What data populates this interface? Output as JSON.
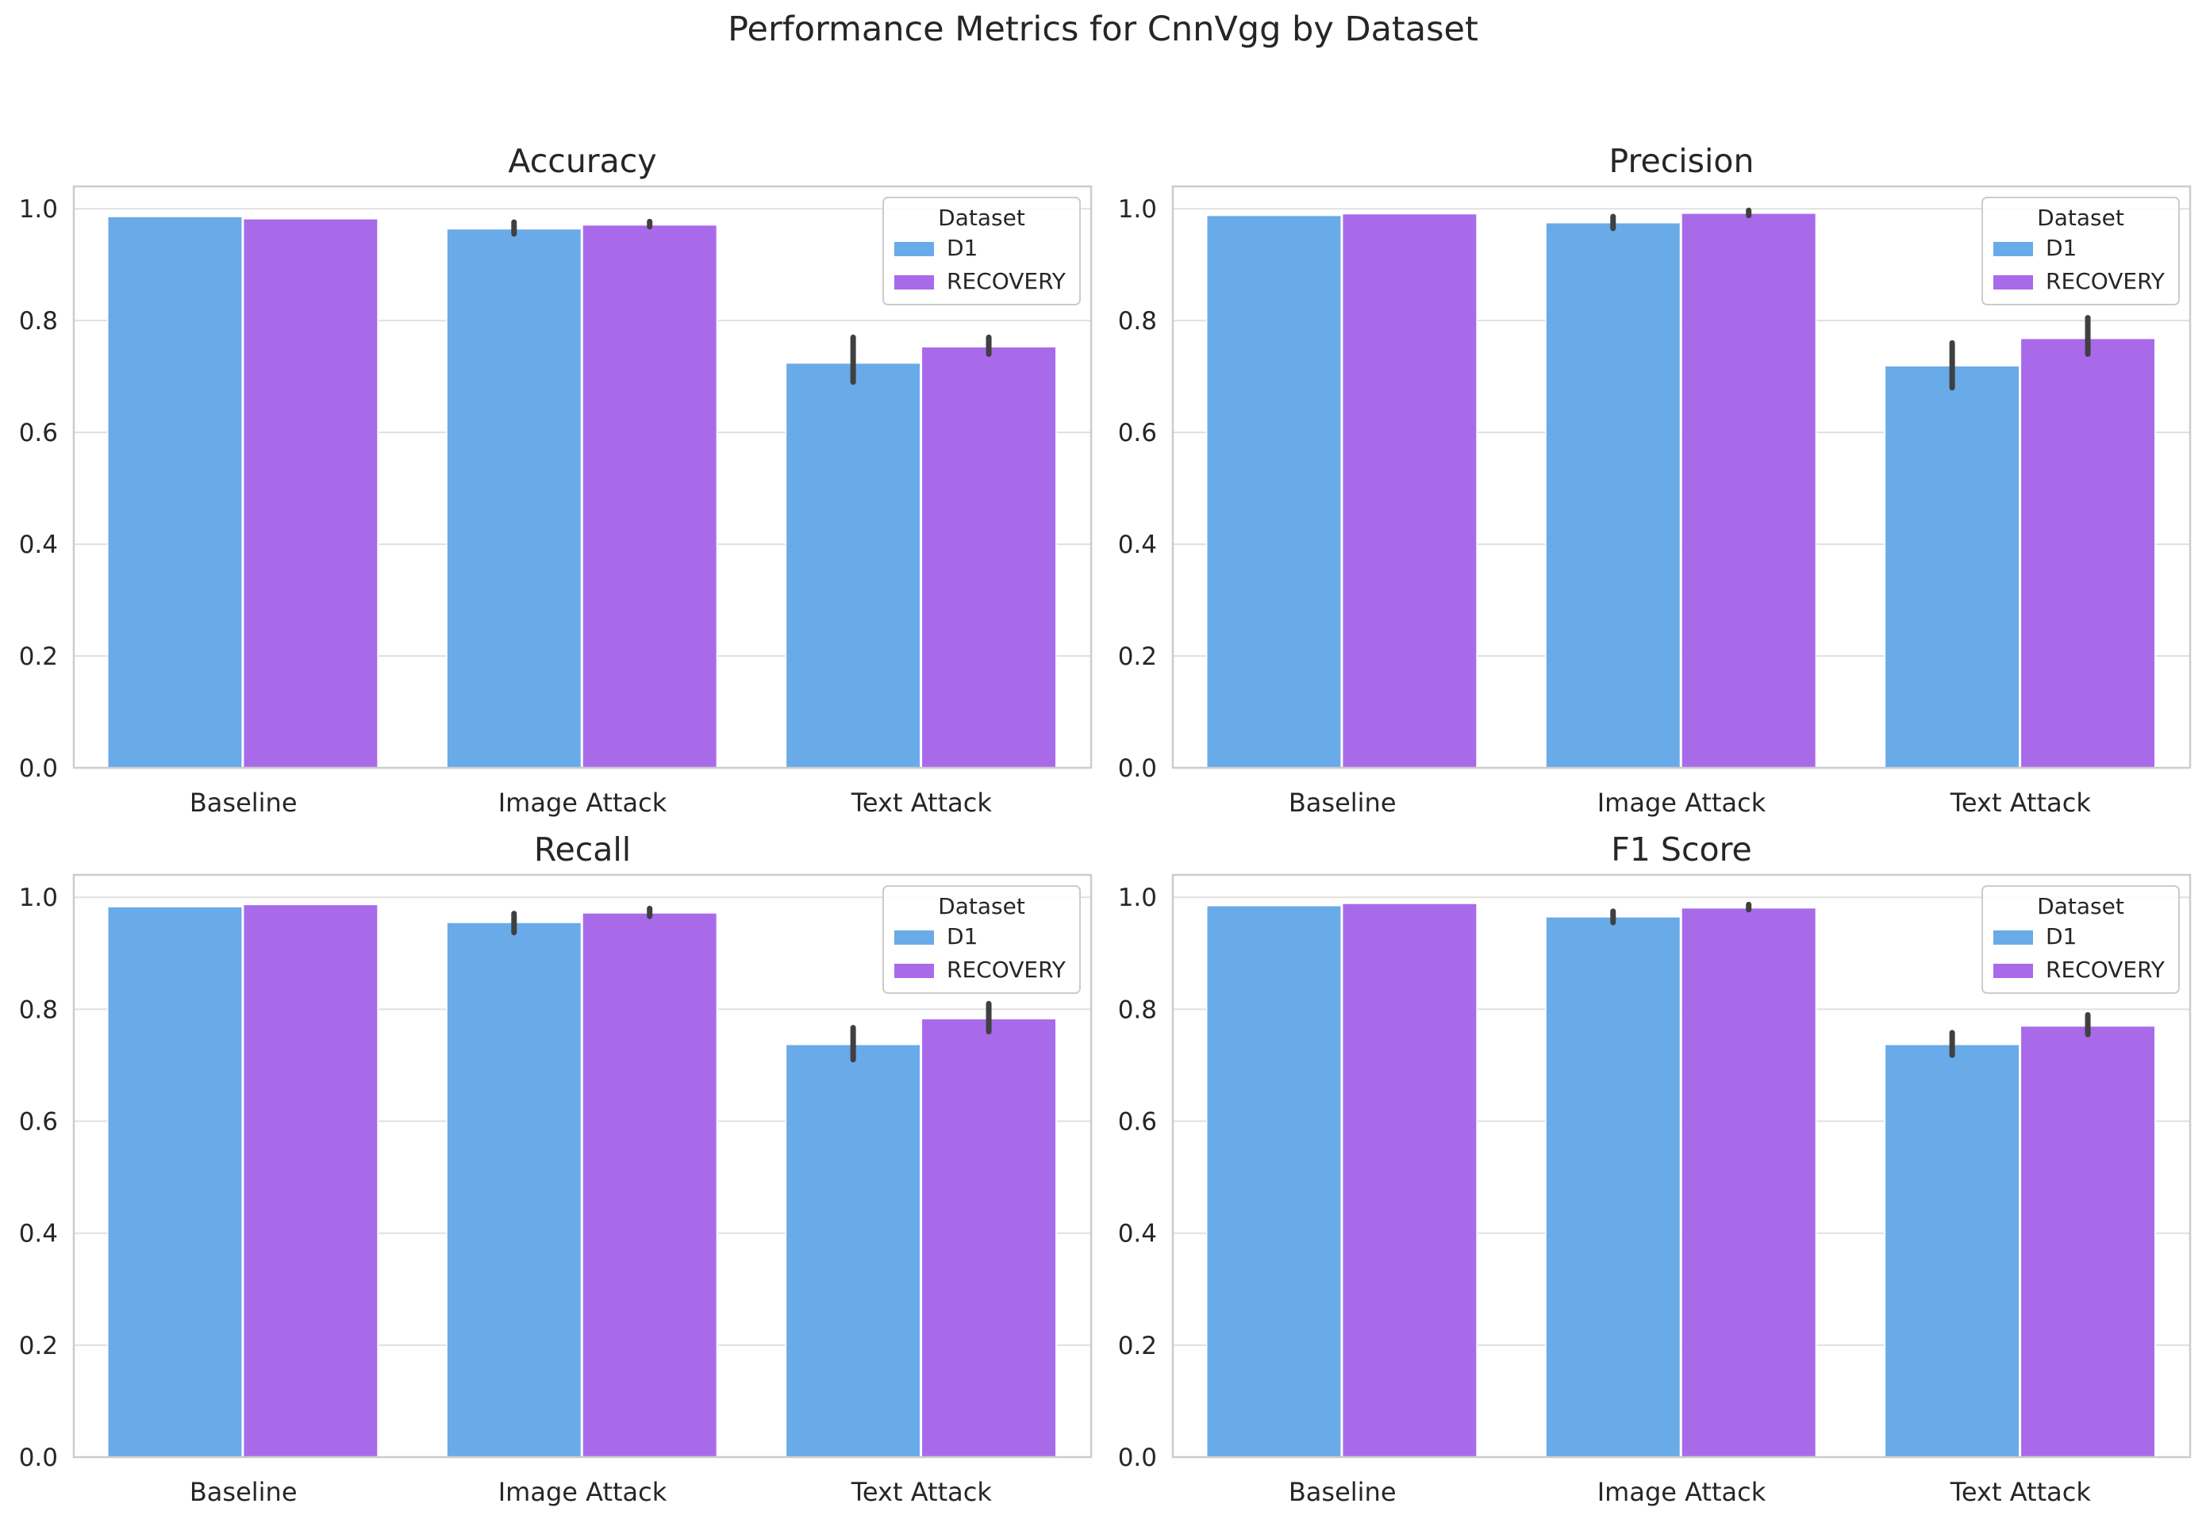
{
  "figure": {
    "title": "Performance Metrics for CnnVgg by Dataset"
  },
  "colors": {
    "D1": "#69aae9",
    "RECOVERY": "#a96aea",
    "grid": "#e0e0e0",
    "spine": "#cccccc",
    "errorbar": "#404040",
    "text": "#262626"
  },
  "legend": {
    "title": "Dataset",
    "entries": [
      "D1",
      "RECOVERY"
    ],
    "placement": "upper right"
  },
  "chart_data": [
    {
      "type": "bar",
      "title": "Accuracy",
      "xlabel": "",
      "ylabel": "",
      "categories": [
        "Baseline",
        "Image Attack",
        "Text Attack"
      ],
      "ylim": [
        0,
        1.04
      ],
      "yticks": [
        "0.0",
        "0.2",
        "0.4",
        "0.6",
        "0.8",
        "1.0"
      ],
      "grid": true,
      "series": [
        {
          "name": "D1",
          "values": [
            0.986,
            0.964,
            0.724
          ],
          "err_low": [
            0.986,
            0.955,
            0.69
          ],
          "err_high": [
            0.986,
            0.976,
            0.77
          ]
        },
        {
          "name": "RECOVERY",
          "values": [
            0.982,
            0.971,
            0.753
          ],
          "err_low": [
            0.982,
            0.968,
            0.74
          ],
          "err_high": [
            0.982,
            0.977,
            0.77
          ]
        }
      ]
    },
    {
      "type": "bar",
      "title": "Precision",
      "xlabel": "",
      "ylabel": "",
      "categories": [
        "Baseline",
        "Image Attack",
        "Text Attack"
      ],
      "ylim": [
        0,
        1.04
      ],
      "yticks": [
        "0.0",
        "0.2",
        "0.4",
        "0.6",
        "0.8",
        "1.0"
      ],
      "grid": true,
      "series": [
        {
          "name": "D1",
          "values": [
            0.988,
            0.975,
            0.719
          ],
          "err_low": [
            0.988,
            0.965,
            0.68
          ],
          "err_high": [
            0.988,
            0.986,
            0.76
          ]
        },
        {
          "name": "RECOVERY",
          "values": [
            0.991,
            0.992,
            0.768
          ],
          "err_low": [
            0.991,
            0.988,
            0.74
          ],
          "err_high": [
            0.991,
            0.997,
            0.805
          ]
        }
      ]
    },
    {
      "type": "bar",
      "title": "Recall",
      "xlabel": "",
      "ylabel": "",
      "categories": [
        "Baseline",
        "Image Attack",
        "Text Attack"
      ],
      "ylim": [
        0,
        1.04
      ],
      "yticks": [
        "0.0",
        "0.2",
        "0.4",
        "0.6",
        "0.8",
        "1.0"
      ],
      "grid": true,
      "series": [
        {
          "name": "D1",
          "values": [
            0.983,
            0.955,
            0.737
          ],
          "err_low": [
            0.983,
            0.937,
            0.71
          ],
          "err_high": [
            0.983,
            0.971,
            0.767
          ]
        },
        {
          "name": "RECOVERY",
          "values": [
            0.987,
            0.972,
            0.783
          ],
          "err_low": [
            0.987,
            0.966,
            0.76
          ],
          "err_high": [
            0.987,
            0.98,
            0.81
          ]
        }
      ]
    },
    {
      "type": "bar",
      "title": "F1 Score",
      "xlabel": "",
      "ylabel": "",
      "categories": [
        "Baseline",
        "Image Attack",
        "Text Attack"
      ],
      "ylim": [
        0,
        1.04
      ],
      "yticks": [
        "0.0",
        "0.2",
        "0.4",
        "0.6",
        "0.8",
        "1.0"
      ],
      "grid": true,
      "series": [
        {
          "name": "D1",
          "values": [
            0.985,
            0.965,
            0.737
          ],
          "err_low": [
            0.985,
            0.955,
            0.718
          ],
          "err_high": [
            0.985,
            0.975,
            0.758
          ]
        },
        {
          "name": "RECOVERY",
          "values": [
            0.989,
            0.981,
            0.77
          ],
          "err_low": [
            0.989,
            0.978,
            0.755
          ],
          "err_high": [
            0.989,
            0.987,
            0.79
          ]
        }
      ]
    }
  ]
}
